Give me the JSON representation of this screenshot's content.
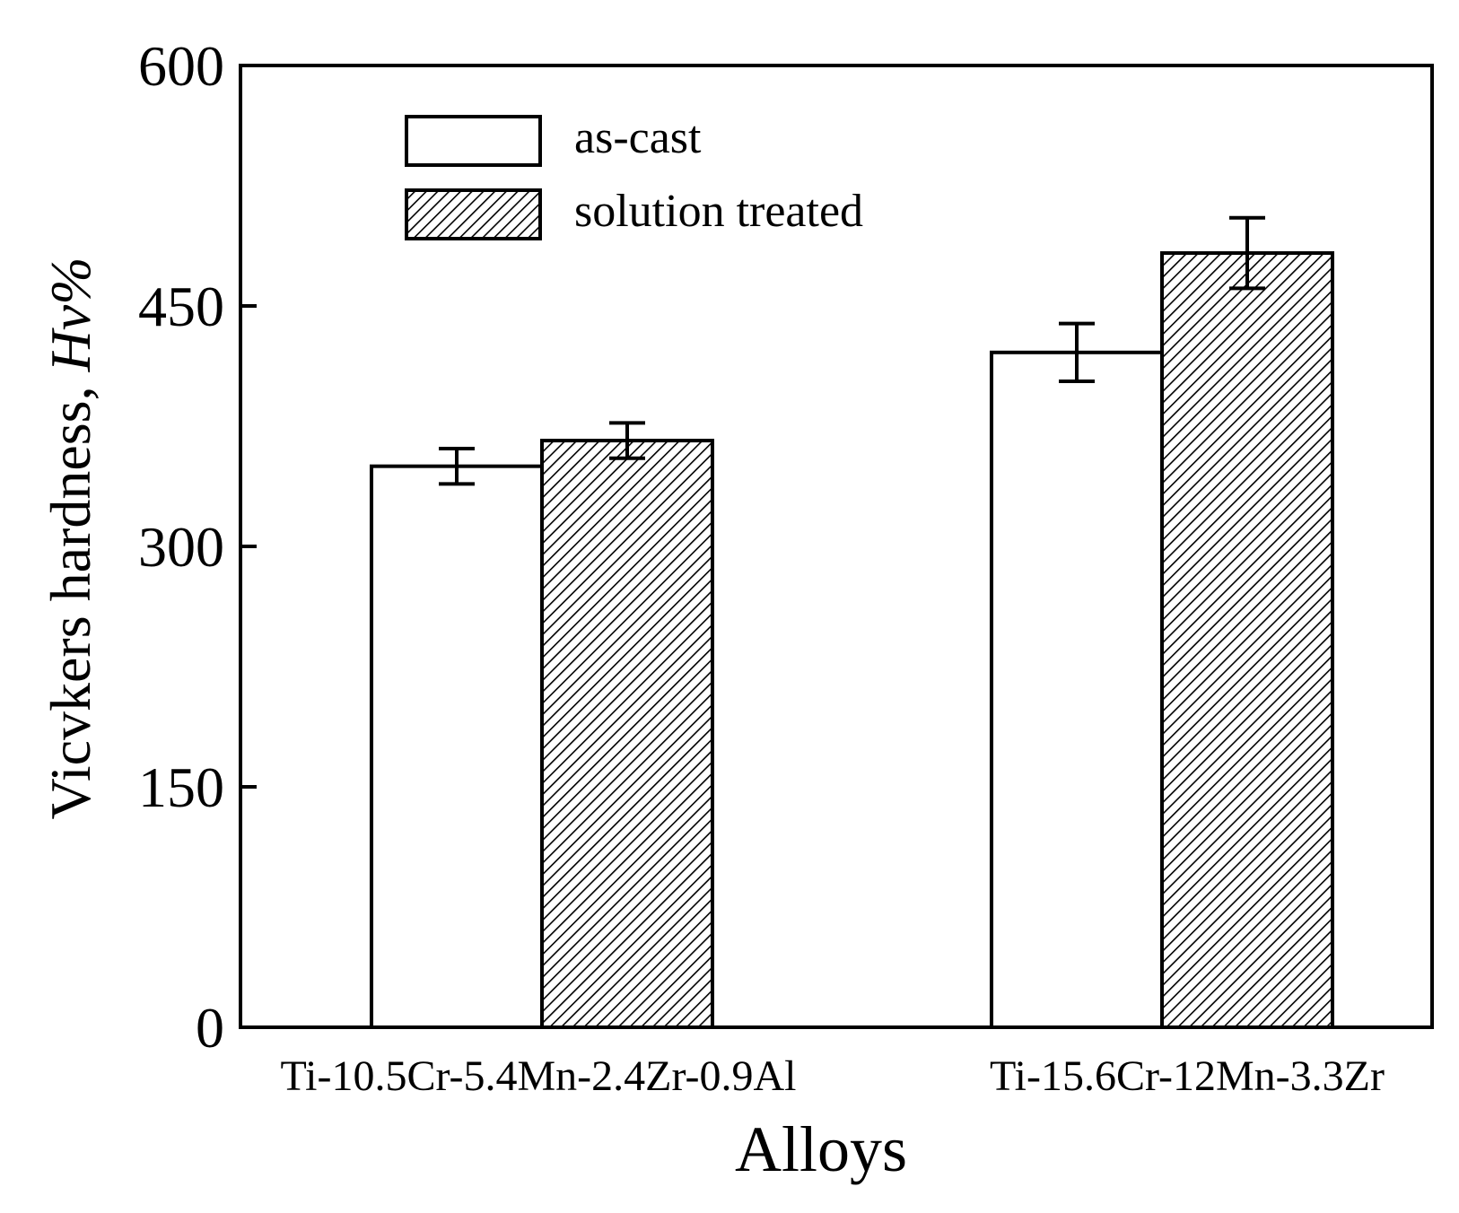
{
  "chart_data": {
    "type": "bar",
    "title": "",
    "xlabel": "Alloys",
    "ylabel": {
      "prefix": "Vicvkers hardness, ",
      "italic": "Hv",
      "suffix": "%"
    },
    "ylim": [
      0,
      600
    ],
    "yticks": [
      "0",
      "150",
      "300",
      "450",
      "600"
    ],
    "categories": [
      "Ti-10.5Cr-5.4Mn-2.4Zr-0.9Al",
      "Ti-15.6Cr-12Mn-3.3Zr"
    ],
    "series": [
      {
        "name": "as-cast",
        "fill": "white",
        "values": [
          350,
          421
        ],
        "errors": [
          11,
          18
        ]
      },
      {
        "name": "solution treated",
        "fill": "hatched",
        "values": [
          366,
          483
        ],
        "errors": [
          11,
          22
        ]
      }
    ],
    "legend_position": "top-left",
    "grid": false
  },
  "colors": {
    "axis": "#000000",
    "bar_outline": "#000000",
    "bar_plain_fill": "#ffffff",
    "hatch": "#000000"
  }
}
